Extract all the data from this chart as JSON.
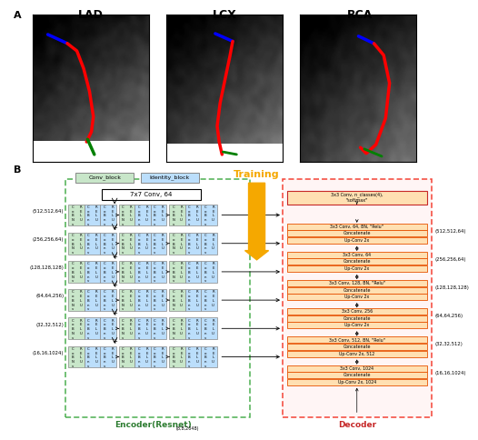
{
  "panel_a_title": "A",
  "panel_b_title": "B",
  "image_labels": [
    "LAD",
    "LCX",
    "RCA"
  ],
  "legend_labels": [
    "Conv_block",
    "Identity_block"
  ],
  "legend_colors": [
    "#c8e6c9",
    "#bbdefb"
  ],
  "training_label": "Training",
  "training_color": "#f5a800",
  "encoder_label": "Encoder(Resnet)",
  "encoder_sub": "(8,8,2048)",
  "encoder_color": "#2e7d32",
  "decoder_label": "Decoder",
  "decoder_color": "#c62828",
  "first_conv_label": "7x7 Conv, 64",
  "encoder_shapes": [
    "(512,512,64)",
    "(256,256,64)",
    "(128,128,128)",
    "(64,64,256)",
    "(32,32,512)",
    "(16,16,1024)"
  ],
  "decoder_shapes_right": [
    "(512,512,64)",
    "(256,256,64)",
    "(128,128,128)",
    "(64,64,256)",
    "(32,32,512)",
    "(16,16,1024)"
  ],
  "decoder_blocks": [
    [
      "3x3 Conv, n_classes(4),",
      "\"softmax\""
    ],
    [
      "3x3 Conv, 64, BN, \"Relu\"",
      "Concatenate",
      "Up-Conv 2x"
    ],
    [
      "3x3 Conv, 64",
      "Concatenate",
      "Up-Conv 2x"
    ],
    [
      "3x3 Conv, 128, BN, \"Relu\"",
      "Concatenate",
      "Up-Conv 2x"
    ],
    [
      "3x3 Conv, 256",
      "Concatenate",
      "Up-Conv 2x"
    ],
    [
      "3x3 Conv, 512, BN, \"Relu\"",
      "Concatenate",
      "Up-Conv 2x, 512"
    ],
    [
      "3x3 Conv, 1024",
      "Concatenate",
      "Up-Conv 2x, 1024"
    ]
  ],
  "block_fill_color": "#ffe0b2",
  "block_edge_color": "#e65100",
  "conv_block_color": "#c8e6c9",
  "identity_block_color": "#bbdefb",
  "encoder_border_color": "#4caf50",
  "decoder_border_color": "#f44336",
  "arrow_color": "#f5a800",
  "bg_color": "white"
}
